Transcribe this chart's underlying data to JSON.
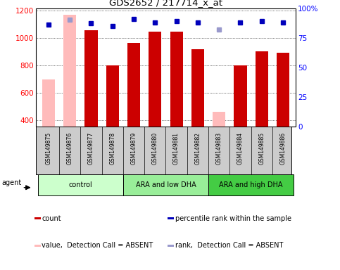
{
  "title": "GDS2652 / 217714_x_at",
  "samples": [
    "GSM149875",
    "GSM149876",
    "GSM149877",
    "GSM149878",
    "GSM149879",
    "GSM149880",
    "GSM149881",
    "GSM149882",
    "GSM149883",
    "GSM149884",
    "GSM149885",
    "GSM149886"
  ],
  "counts": [
    700,
    1170,
    1060,
    800,
    965,
    1050,
    1050,
    920,
    460,
    800,
    905,
    895
  ],
  "absent_count": [
    true,
    true,
    false,
    false,
    false,
    false,
    false,
    false,
    true,
    false,
    false,
    false
  ],
  "percentile_ranks": [
    86,
    90,
    87,
    85,
    91,
    88,
    89,
    88,
    82,
    88,
    89,
    88
  ],
  "absent_rank": [
    false,
    true,
    false,
    false,
    false,
    false,
    false,
    false,
    true,
    false,
    false,
    false
  ],
  "groups": [
    {
      "label": "control",
      "start": 0,
      "end": 4,
      "color": "#ccffcc"
    },
    {
      "label": "ARA and low DHA",
      "start": 4,
      "end": 8,
      "color": "#99ee99"
    },
    {
      "label": "ARA and high DHA",
      "start": 8,
      "end": 12,
      "color": "#44cc44"
    }
  ],
  "ylim_left": [
    350,
    1220
  ],
  "ylim_right": [
    0,
    100
  ],
  "left_ticks": [
    400,
    600,
    800,
    1000,
    1200
  ],
  "right_ticks": [
    0,
    25,
    50,
    75,
    100
  ],
  "bar_color_present": "#cc0000",
  "bar_color_absent": "#ffbbbb",
  "dot_color_present": "#0000bb",
  "dot_color_absent": "#9999cc",
  "background_color": "#ffffff",
  "sample_box_color": "#cccccc",
  "legend_items": [
    {
      "color": "#cc0000",
      "label": "count"
    },
    {
      "color": "#0000bb",
      "label": "percentile rank within the sample"
    },
    {
      "color": "#ffbbbb",
      "label": "value,  Detection Call = ABSENT"
    },
    {
      "color": "#9999cc",
      "label": "rank,  Detection Call = ABSENT"
    }
  ]
}
